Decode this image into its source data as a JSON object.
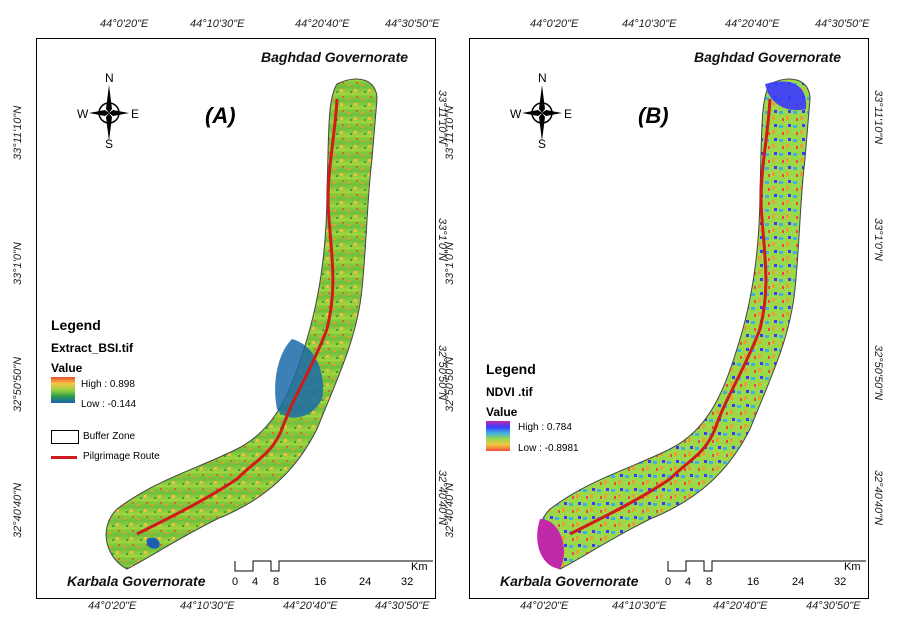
{
  "top_ticks": [
    "44°0'20\"E",
    "44°10'30\"E",
    "44°20'40\"E",
    "44°30'50\"E"
  ],
  "bottom_ticks": [
    "44°0'20\"E",
    "44°10'30\"E",
    "44°20'40\"E",
    "44°30'50\"E"
  ],
  "side_ticks": [
    "33°11'10\"N",
    "33°1'0\"N",
    "32°50'50\"N",
    "32°40'40\"N"
  ],
  "panel_a": {
    "label": "(A)",
    "north_gov": "Baghdad Governorate",
    "south_gov": "Karbala Governorate",
    "compass": {
      "n": "N",
      "s": "S",
      "e": "E",
      "w": "W"
    },
    "legend": {
      "title": "Legend",
      "layer": "Extract_BSI.tif",
      "value_label": "Value",
      "high": "High : 0.898",
      "low": "Low : -0.144",
      "buffer": "Buffer Zone",
      "route": "Pilgrimage Route"
    },
    "scale": {
      "ticks": [
        "0",
        "4",
        "8",
        "16",
        "24",
        "32"
      ],
      "unit": "Km"
    }
  },
  "panel_b": {
    "label": "(B)",
    "north_gov": "Baghdad Governorate",
    "south_gov": "Karbala Governorate",
    "compass": {
      "n": "N",
      "s": "S",
      "e": "E",
      "w": "W"
    },
    "legend": {
      "title": "Legend",
      "layer": "NDVI .tif",
      "value_label": "Value",
      "high": "High : 0.784",
      "low": "Low : -0.8981"
    },
    "scale": {
      "ticks": [
        "0",
        "4",
        "8",
        "16",
        "24",
        "32"
      ],
      "unit": "Km"
    }
  },
  "colors": {
    "route": "#d11a1a",
    "bsi_low": "#1a5fb4",
    "bsi_mid": "#4caf50",
    "bsi_high": "#e8412b",
    "ndvi_blue": "#3a3aff"
  }
}
